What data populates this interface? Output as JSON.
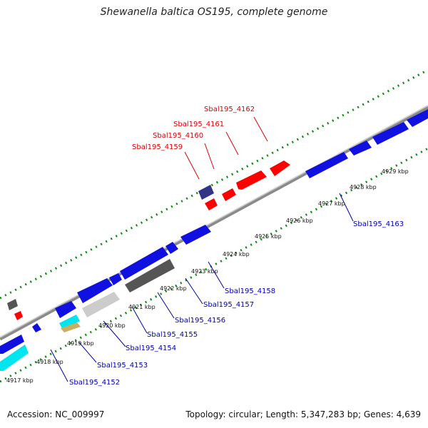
{
  "title": "Shewanella baltica OS195, complete genome",
  "footer": {
    "accession": "Accession: NC_009997",
    "summary": "Topology: circular; Length: 5,347,283 bp; Genes: 4,639"
  },
  "colors": {
    "forward_gene": "#1010e0",
    "reverse_gene": "#ff0000",
    "label_forward": "#0000aa",
    "label_reverse": "#dd0000",
    "backbone": "#999999",
    "ticks": "#118811"
  },
  "kbp_labels": [
    "4917 kbp",
    "4918 kbp",
    "4919 kbp",
    "4920 kbp",
    "4921 kbp",
    "4922 kbp",
    "4923 kbp",
    "4924 kbp",
    "4925 kbp",
    "4926 kbp",
    "4927 kbp",
    "4928 kbp",
    "4929 kbp"
  ],
  "reverse_labels": [
    "Sbal195_4159",
    "Sbal195_4160",
    "Sbal195_4161",
    "Sbal195_4162"
  ],
  "forward_labels": [
    "Sbal195_4152",
    "Sbal195_4153",
    "Sbal195_4154",
    "Sbal195_4155",
    "Sbal195_4156",
    "Sbal195_4157",
    "Sbal195_4158",
    "Sbal195_4163"
  ]
}
